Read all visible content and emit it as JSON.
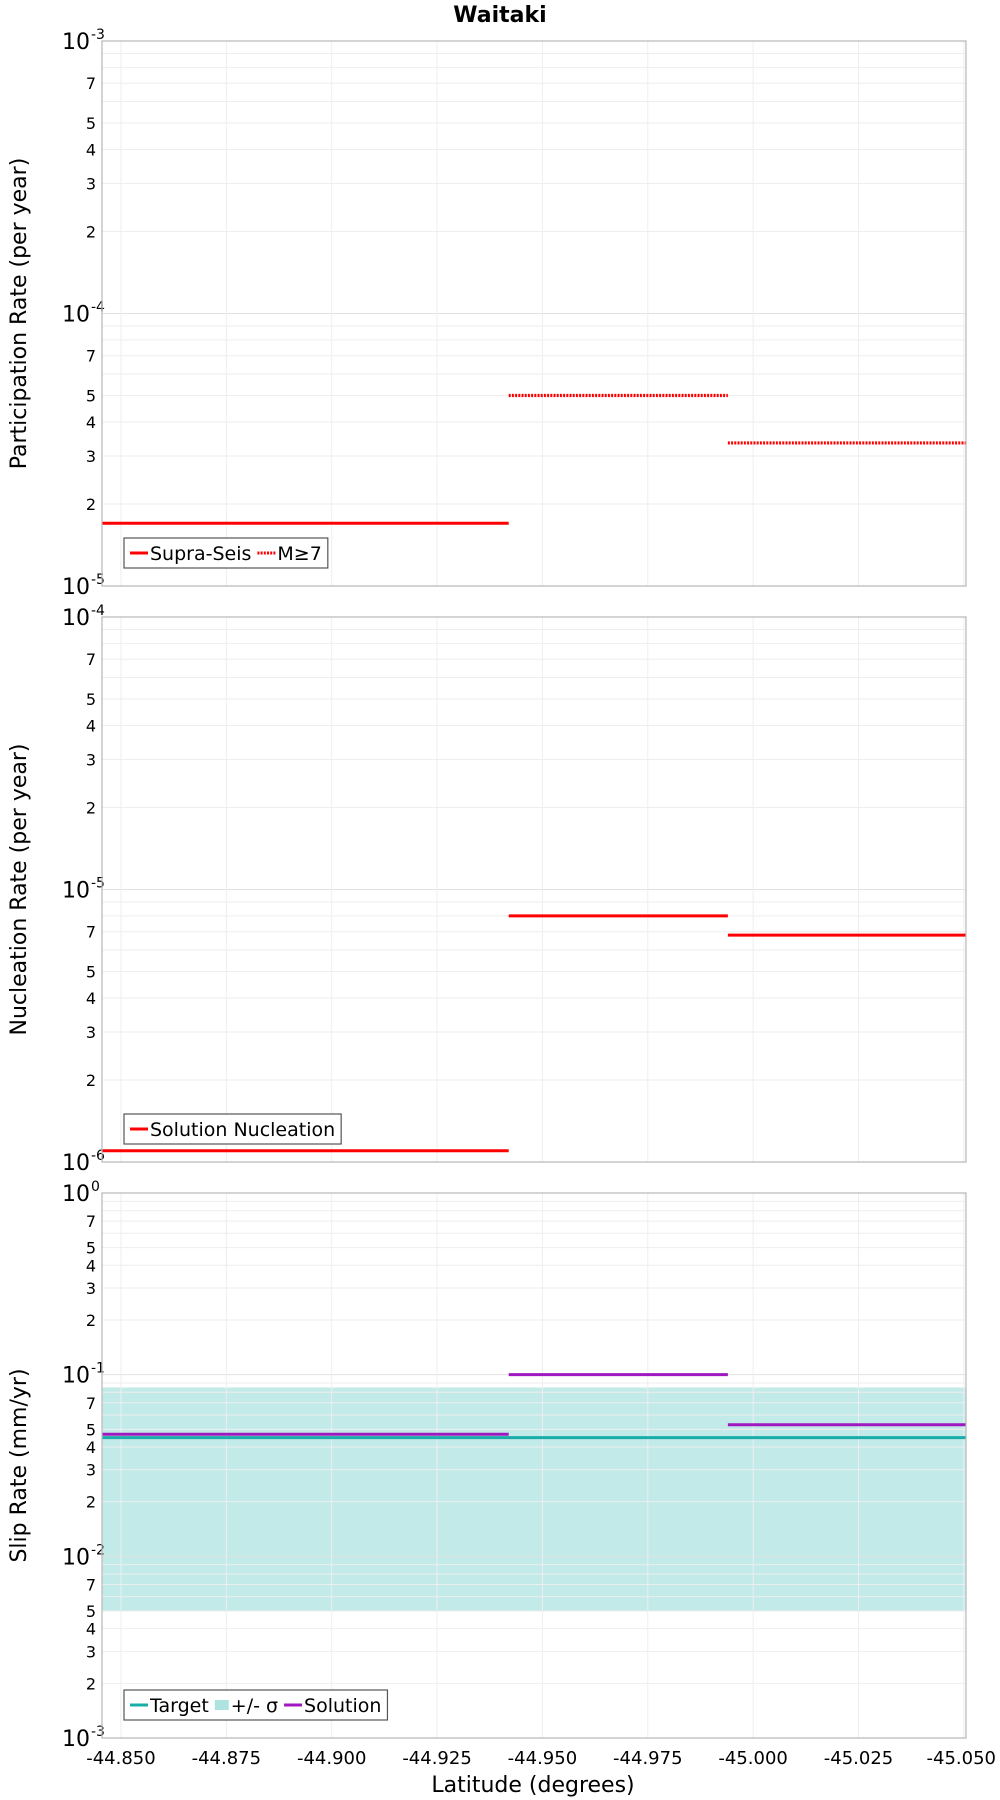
{
  "title": "Waitaki",
  "x_axis": {
    "label": "Latitude (degrees)",
    "ticks": [
      "-44.850",
      "-44.875",
      "-44.900",
      "-44.925",
      "-44.950",
      "-44.975",
      "-45.000",
      "-45.025",
      "-45.050"
    ]
  },
  "chart_data": [
    {
      "type": "line",
      "panel": "participation",
      "ylabel": "Participation Rate (per year)",
      "yscale": "log",
      "ylim": [
        1e-05,
        0.001
      ],
      "xlim": [
        -44.8455,
        -45.0505
      ],
      "grid": true,
      "legend_position": "bottom-left",
      "series": [
        {
          "name": "Supra-Seis",
          "style": "solid",
          "color": "#ff0000",
          "segments": [
            [
              -44.8455,
              -44.942,
              1.7e-05
            ]
          ]
        },
        {
          "name": "M≥7",
          "style": "dotted",
          "color": "#ff0000",
          "segments": [
            [
              -44.942,
              -44.994,
              5e-05
            ],
            [
              -44.994,
              -45.0505,
              3.35e-05
            ]
          ]
        }
      ]
    },
    {
      "type": "line",
      "panel": "nucleation",
      "ylabel": "Nucleation Rate (per year)",
      "yscale": "log",
      "ylim": [
        1e-06,
        0.0001
      ],
      "xlim": [
        -44.8455,
        -45.0505
      ],
      "grid": true,
      "legend_position": "bottom-left",
      "series": [
        {
          "name": "Solution Nucleation",
          "style": "solid",
          "color": "#ff0000",
          "segments": [
            [
              -44.8455,
              -44.942,
              1.1e-06
            ],
            [
              -44.942,
              -44.994,
              8e-06
            ],
            [
              -44.994,
              -45.0505,
              6.8e-06
            ]
          ]
        }
      ]
    },
    {
      "type": "line",
      "panel": "slip",
      "ylabel": "Slip Rate (mm/yr)",
      "yscale": "log",
      "ylim": [
        0.001,
        1
      ],
      "xlim": [
        -44.8455,
        -45.0505
      ],
      "grid": true,
      "legend_position": "bottom-left",
      "band": {
        "name": "+/- σ",
        "color": "#aee3e0",
        "y_low": 0.005,
        "y_high": 0.085,
        "x_from": -44.8455,
        "x_to": -45.0505
      },
      "series": [
        {
          "name": "Target",
          "style": "solid",
          "color": "#1aaca8",
          "segments": [
            [
              -44.8455,
              -45.0505,
              0.045
            ]
          ]
        },
        {
          "name": "Solution",
          "style": "solid",
          "color": "#a018c0",
          "segments": [
            [
              -44.8455,
              -44.942,
              0.047
            ],
            [
              -44.942,
              -44.994,
              0.1
            ],
            [
              -44.994,
              -45.0505,
              0.053
            ]
          ]
        }
      ]
    }
  ]
}
